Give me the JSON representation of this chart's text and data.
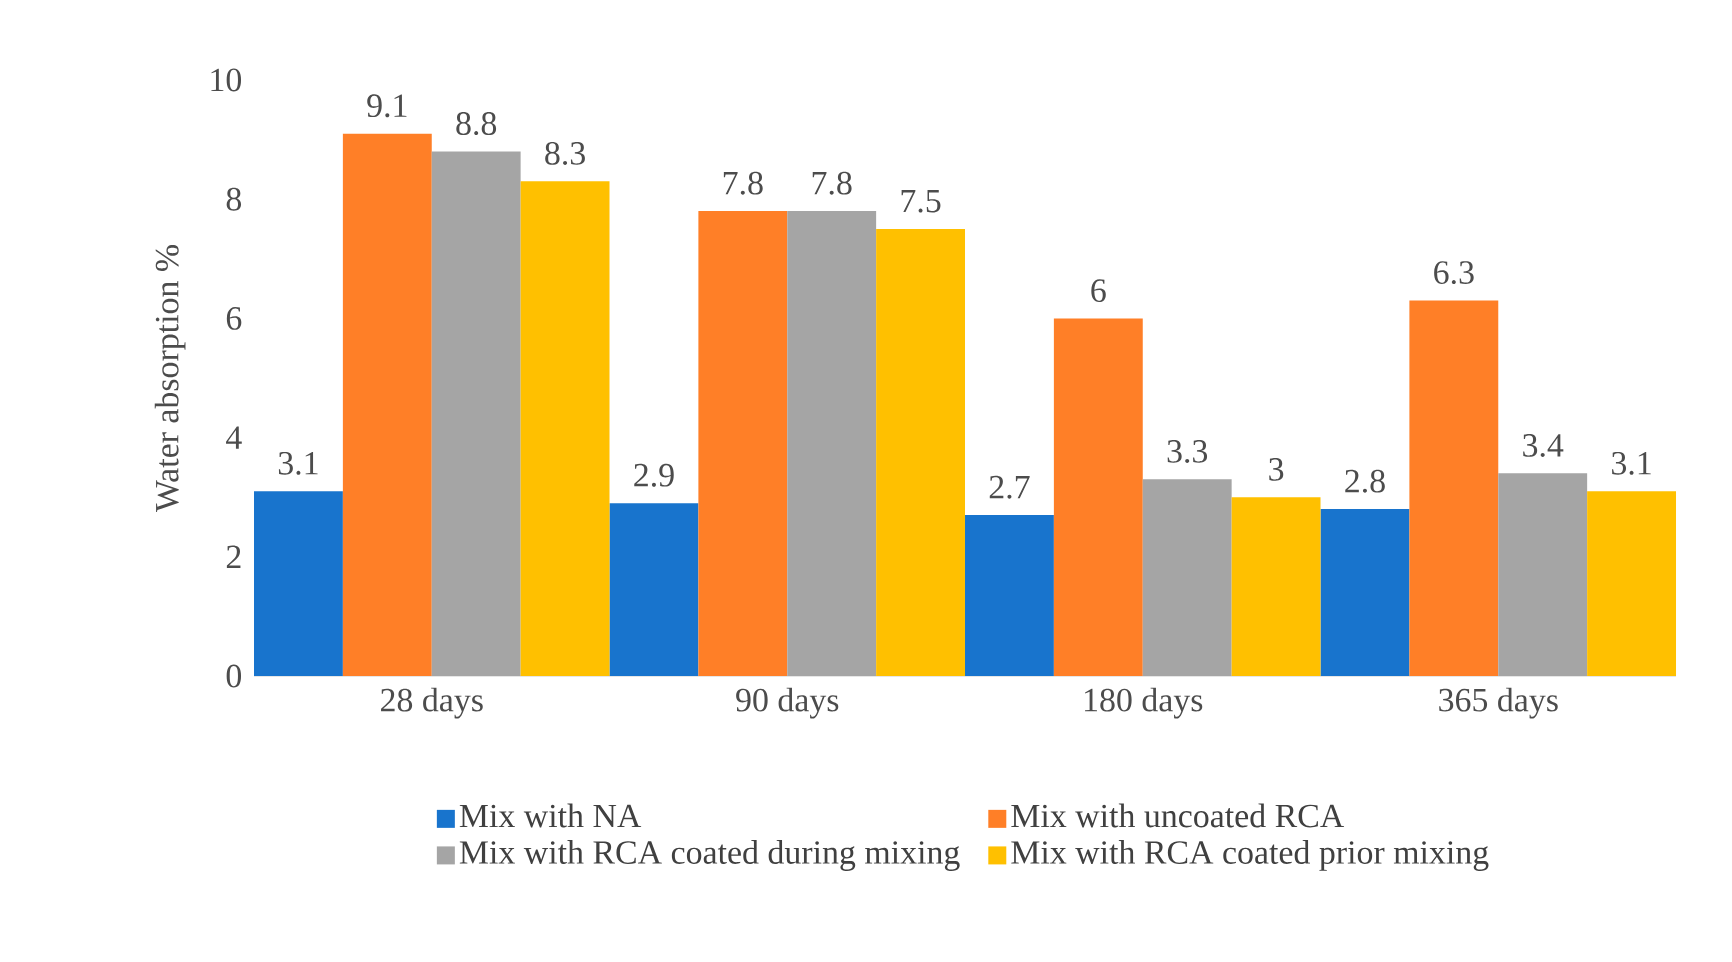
{
  "chart_data": {
    "type": "bar",
    "ylabel": "Water absorption %",
    "categories": [
      "28 days",
      "90 days",
      "180 days",
      "365 days"
    ],
    "series": [
      {
        "name": "Mix with NA",
        "color": "#1874cd",
        "values": [
          3.1,
          2.9,
          2.7,
          2.8
        ]
      },
      {
        "name": "Mix with uncoated RCA",
        "color": "#ff7f27",
        "values": [
          9.1,
          7.8,
          6,
          6.3
        ]
      },
      {
        "name": "Mix with RCA coated during mixing",
        "color": "#a5a5a5",
        "values": [
          8.8,
          7.8,
          3.3,
          3.4
        ]
      },
      {
        "name": "Mix with RCA coated prior mixing",
        "color": "#ffc000",
        "values": [
          8.3,
          7.5,
          3,
          3.1
        ]
      }
    ],
    "ylim": [
      0,
      10
    ],
    "yticks": [
      0,
      2,
      4,
      6,
      8,
      10
    ],
    "data_labels": true,
    "legend": "bottom"
  }
}
